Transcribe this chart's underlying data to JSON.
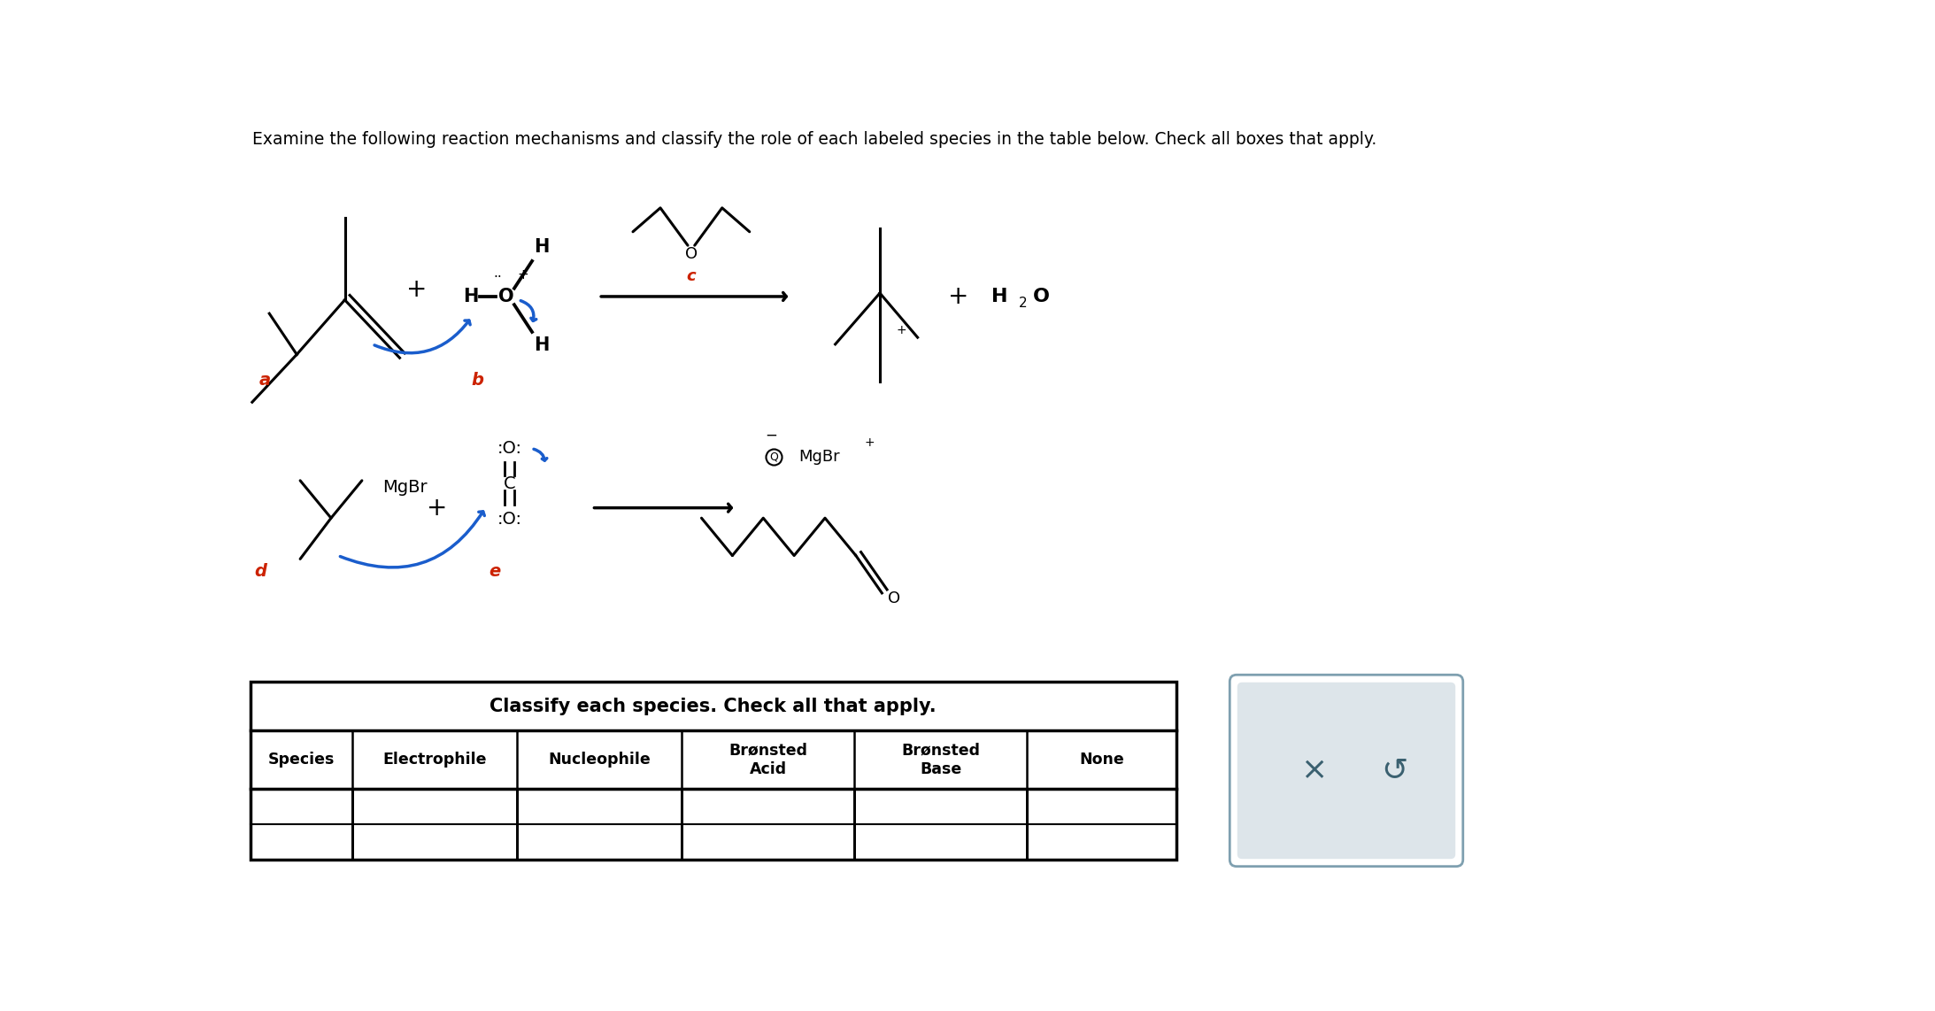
{
  "title_text": "Examine the following reaction mechanisms and classify the role of each labeled species in the table below. Check all boxes that apply.",
  "title_fontsize": 13.5,
  "bg_color": "#ffffff",
  "text_color": "#000000",
  "blue_color": "#1a5dcc",
  "red_color": "#cc2200",
  "label_a": "a",
  "label_b": "b",
  "label_c": "c",
  "label_d": "d",
  "label_e": "e",
  "table_header": "Classify each species. Check all that apply.",
  "col_headers": [
    "Species",
    "Electrophile",
    "Nucleophile",
    "Brønsted\nAcid",
    "Brønsted\nBase",
    "None"
  ],
  "button_box_color": "#dde5ea",
  "button_border_color": "#7fa0b0"
}
